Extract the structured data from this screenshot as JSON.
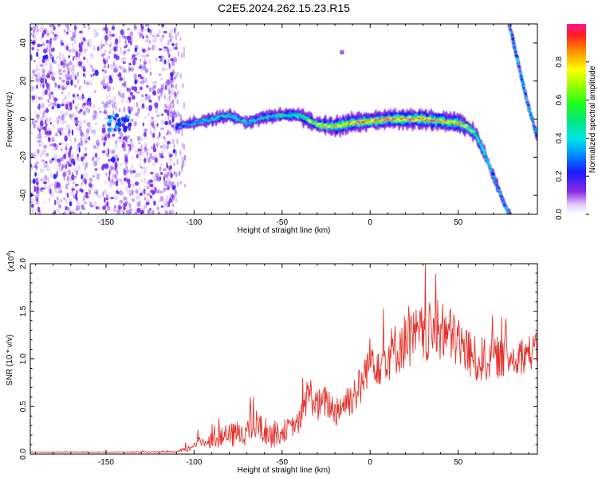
{
  "figure": {
    "title": "C2E5.2024.262.15.23.R15"
  },
  "colors": {
    "snr_line": "#e8302a",
    "ridge_core": "#e0202a",
    "ridge_mid": "#20e0d0",
    "ridge_outer": "#2020e0",
    "noise": "#7b2cf0"
  },
  "chart_data": [
    {
      "type": "heatmap",
      "name": "spectrogram",
      "xlabel": "Height of straight line (km)",
      "ylabel": "Frequency (Hz)",
      "xlim": [
        -193,
        95
      ],
      "ylim": [
        -50,
        50
      ],
      "xticks": [
        -150,
        -100,
        -50,
        0,
        50
      ],
      "xtick_labels": [
        "-150",
        "-100",
        "-50",
        "0",
        "50"
      ],
      "yticks": [
        -40,
        -20,
        0,
        20,
        40
      ],
      "ytick_labels": [
        "-40",
        "-20",
        "0",
        "20",
        "40"
      ],
      "colorbar": {
        "label": "Normalized spectral amplitude",
        "range": [
          0,
          1
        ],
        "ticks": [
          0.0,
          0.2,
          0.4,
          0.6,
          0.8
        ],
        "tick_labels": [
          "0.0",
          "0.2",
          "0.4",
          "0.6",
          "0.8"
        ]
      },
      "noise_region_x": [
        -193,
        -110
      ],
      "ridge": {
        "x": [
          -110,
          -100,
          -90,
          -80,
          -70,
          -60,
          -50,
          -40,
          -30,
          -20,
          -10,
          0,
          10,
          20,
          30,
          40,
          50,
          55,
          60,
          65,
          70,
          75,
          80
        ],
        "y": [
          -4,
          -2,
          0,
          2,
          -2,
          1,
          2,
          2,
          -3,
          -4,
          -2,
          -1,
          0,
          0,
          0,
          -1,
          -2,
          -4,
          -8,
          -18,
          -30,
          -42,
          -52
        ],
        "amplitude": [
          0.35,
          0.4,
          0.45,
          0.45,
          0.45,
          0.45,
          0.5,
          0.55,
          0.75,
          0.8,
          0.85,
          0.9,
          0.9,
          0.95,
          0.95,
          0.9,
          0.85,
          0.7,
          0.6,
          0.5,
          0.45,
          0.4,
          0.4
        ]
      },
      "secondary_ridge": {
        "x": [
          79,
          84,
          89,
          95
        ],
        "y": [
          50,
          30,
          10,
          -10
        ],
        "amplitude": [
          0.45,
          0.5,
          0.5,
          0.45
        ]
      },
      "isolated_spot": {
        "x": -16,
        "y": 35
      }
    },
    {
      "type": "line",
      "name": "snr",
      "xlabel": "Height of straight line (km)",
      "ylabel": "SNR (10 * v/v)",
      "exponent_label": "(x10",
      "exponent_power": "4",
      "exponent_close": ")",
      "xlim": [
        -193,
        95
      ],
      "ylim": [
        0,
        20000
      ],
      "xticks": [
        -150,
        -100,
        -50,
        0,
        50
      ],
      "xtick_labels": [
        "-150",
        "-100",
        "-50",
        "0",
        "50"
      ],
      "yticks": [
        0,
        5000,
        10000,
        15000,
        20000
      ],
      "ytick_labels": [
        "0.0",
        "0.5",
        "1.0",
        "1.5",
        "2.0"
      ],
      "envelope": {
        "x": [
          -193,
          -150,
          -110,
          -102,
          -100,
          -90,
          -80,
          -70,
          -65,
          -55,
          -50,
          -45,
          -40,
          -35,
          -30,
          -25,
          -20,
          -10,
          -5,
          0,
          5,
          10,
          20,
          30,
          40,
          50,
          55,
          60,
          70,
          80,
          90,
          95
        ],
        "base": [
          200,
          200,
          200,
          500,
          1000,
          1200,
          1500,
          2000,
          2500,
          1500,
          2000,
          2500,
          3000,
          6000,
          4500,
          5000,
          4000,
          5500,
          6500,
          9500,
          9000,
          9500,
          11000,
          11500,
          12000,
          11000,
          10000,
          9000,
          9500,
          9500,
          10000,
          10500
        ],
        "spread": [
          60,
          80,
          150,
          800,
          1000,
          1500,
          2500,
          3000,
          3500,
          2500,
          2500,
          2000,
          2500,
          4000,
          3500,
          3500,
          3500,
          4000,
          4500,
          4500,
          5500,
          5500,
          6000,
          6500,
          6500,
          6000,
          5500,
          5000,
          4500,
          4000,
          4000,
          3500
        ]
      }
    }
  ]
}
